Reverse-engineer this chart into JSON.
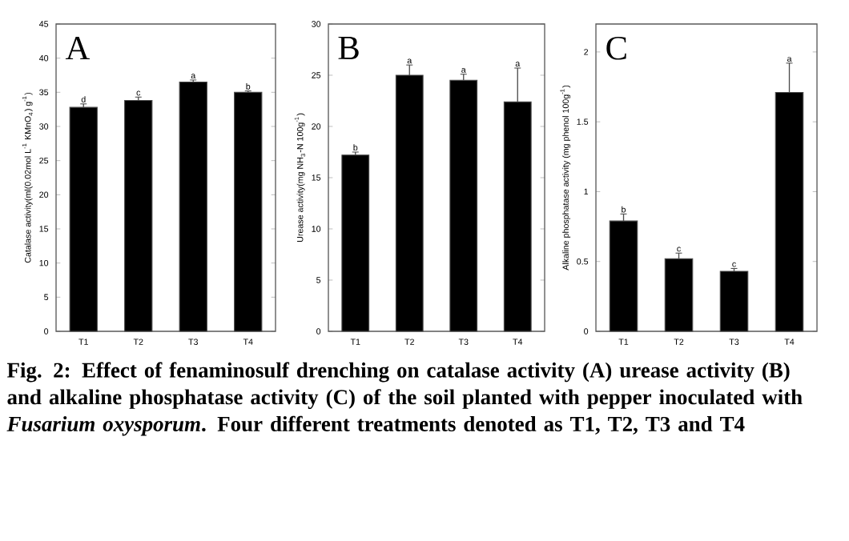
{
  "chart_data": [
    {
      "type": "bar",
      "categories": [
        "T1",
        "T2",
        "T3",
        "T4"
      ],
      "values": [
        32.8,
        33.8,
        36.5,
        35.0
      ],
      "errors": [
        0.5,
        0.5,
        0.3,
        0.2
      ],
      "color": "#000000",
      "ylim": [
        0,
        45
      ],
      "yticks": [
        0,
        5,
        10,
        15,
        20,
        25,
        30,
        35,
        40,
        45
      ],
      "ylabel": "Catalase activity(ml(0.02mol L$^{-1}$ KMnO$_{4}$) g$^{-1}$)",
      "annotations": [
        "A",
        "**Fig. 2: Effect of fenaminosulf drenching on catalase activity (A) urease activity (B) and alkaline phosphatase activity (C) of the soil planted with pepper inoculated with *Fusarium oxysporum*. Four different treatments denoted as T1, T2, T3 and T4**",
        {
          "text": "d",
          "x": "T1",
          "y": 33.3
        },
        {
          "text": "c",
          "x": "T2",
          "y": 34.3
        },
        {
          "text": "a",
          "x": "T3",
          "y": 36.8
        },
        {
          "text": "b",
          "x": "T4",
          "y": 35.2
        }
      ]
    },
    {
      "type": "bar",
      "categories": [
        "T1",
        "T2",
        "T3",
        "T4"
      ],
      "values": [
        17.2,
        25.0,
        24.5,
        22.4
      ],
      "errors": [
        0.3,
        1.0,
        0.6,
        3.3
      ],
      "color": "#000000",
      "ylim": [
        0,
        30
      ],
      "yticks": [
        0,
        5,
        10,
        15,
        20,
        25,
        30
      ],
      "ylabel": "Urease activity(mg NH$_{3}$-N 100g$^{-1}$)",
      "annotations": [
        "B",
        {
          "text": "b",
          "x": "T1",
          "y": 17.5
        },
        {
          "text": "a",
          "x": "T2",
          "y": 26.0
        },
        {
          "text": "a",
          "x": "T3",
          "y": 25.1
        },
        {
          "text": "a",
          "x": "T4",
          "y": 25.7
        }
      ]
    },
    {
      "type": "bar",
      "categories": [
        "T1",
        "T2",
        "T3",
        "T4"
      ],
      "values": [
        0.79,
        0.52,
        0.43,
        1.71
      ],
      "errors": [
        0.05,
        0.04,
        0.02,
        0.21
      ],
      "color": "#000000",
      "ylim": [
        0,
        2.2
      ],
      "yticks": [
        0,
        0.5,
        1,
        1.5,
        2
      ],
      "ylabel": "Alkaline phosphatase activity (mg phenol 100g$^{-1}$)",
      "annotations": [
        "C",
        {
          "text": "b",
          "x": "T1",
          "y": 0.84
        },
        {
          "text": "c",
          "x": "T2",
          "y": 0.56
        },
        {
          "text": "c",
          "x": "T3",
          "y": 0.45
        },
        {
          "text": "a",
          "x": "T4",
          "y": 1.92
        }
      ]
    }
  ]
}
